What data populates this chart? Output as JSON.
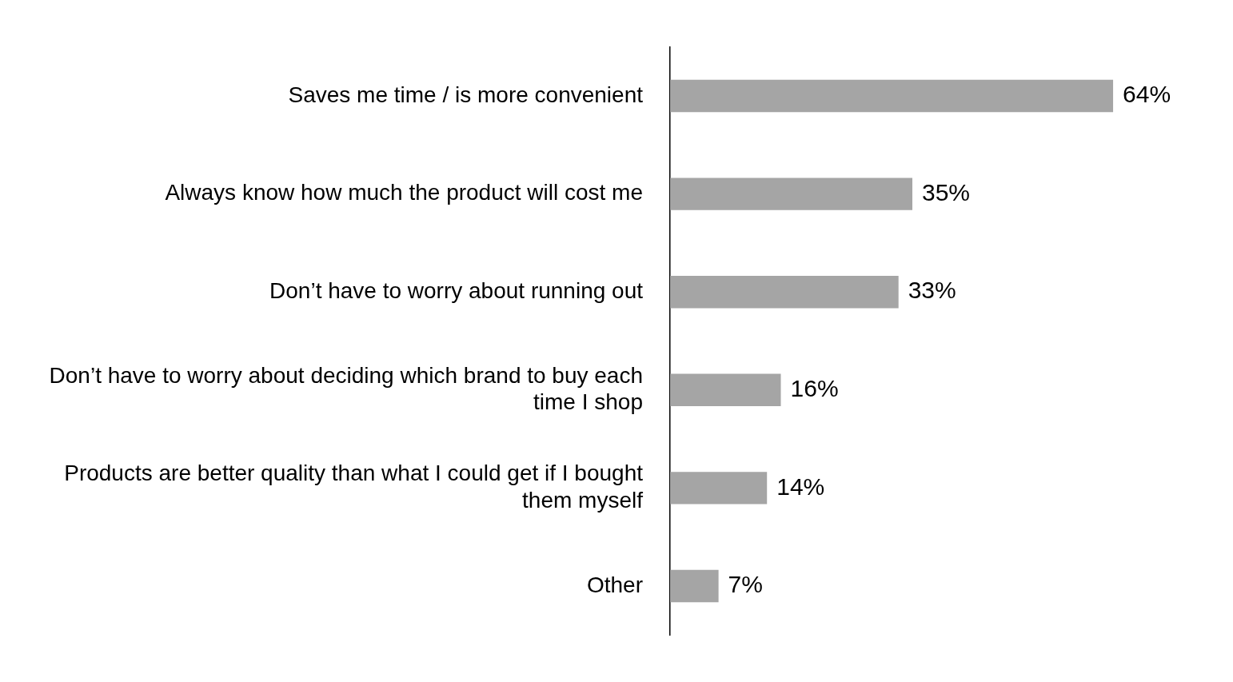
{
  "chart_data": {
    "type": "bar",
    "orientation": "horizontal",
    "categories": [
      "Saves me time / is more convenient",
      "Always know how much the product will cost me",
      "Don’t have to worry about running out",
      "Don’t have to worry about deciding which brand to buy each time I shop",
      "Products are better quality than what I could get if I bought them myself",
      "Other"
    ],
    "values": [
      64,
      35,
      33,
      16,
      14,
      7
    ],
    "value_labels": [
      "64%",
      "35%",
      "33%",
      "16%",
      "14%",
      "7%"
    ],
    "color": "#a5a5a5",
    "legend": false
  }
}
